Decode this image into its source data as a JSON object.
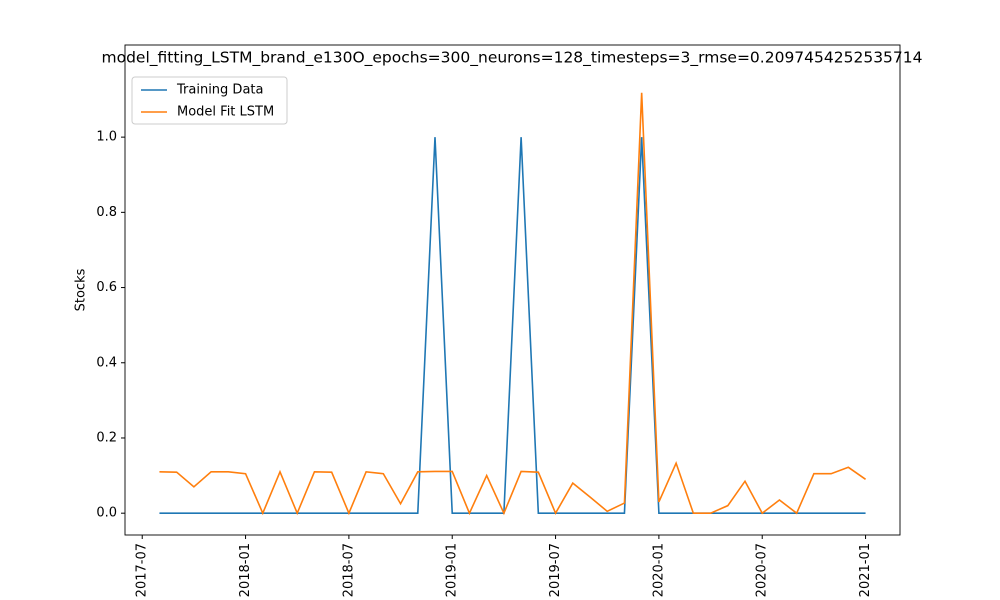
{
  "chart_data": {
    "type": "line",
    "title": "model_fitting_LSTM_brand_e130O_epochs=300_neurons=128_timesteps=3_rmse=0.2097454252535714",
    "y_label": "Stocks",
    "x": [
      "2017-08",
      "2017-09",
      "2017-10",
      "2017-11",
      "2017-12",
      "2018-01",
      "2018-02",
      "2018-03",
      "2018-04",
      "2018-05",
      "2018-06",
      "2018-07",
      "2018-08",
      "2018-09",
      "2018-10",
      "2018-11",
      "2018-12",
      "2019-01",
      "2019-02",
      "2019-03",
      "2019-04",
      "2019-05",
      "2019-06",
      "2019-07",
      "2019-08",
      "2019-09",
      "2019-10",
      "2019-11",
      "2019-12",
      "2020-01",
      "2020-02",
      "2020-03",
      "2020-04",
      "2020-05",
      "2020-06",
      "2020-07",
      "2020-08",
      "2020-09",
      "2020-10",
      "2020-11",
      "2020-12",
      "2021-01"
    ],
    "series": [
      {
        "name": "Training Data",
        "color": "#1f77b4",
        "values": [
          0,
          0,
          0,
          0,
          0,
          0,
          0,
          0,
          0,
          0,
          0,
          0,
          0,
          0,
          0,
          0,
          1,
          0,
          0,
          0,
          0,
          1,
          0,
          0,
          0,
          0,
          0,
          0,
          1,
          0,
          0,
          0,
          0,
          0,
          0,
          0,
          0,
          0,
          0,
          0,
          0,
          0
        ]
      },
      {
        "name": "Model Fit LSTM",
        "color": "#ff7f0e",
        "values": [
          0.11,
          0.109,
          0.07,
          0.11,
          0.11,
          0.105,
          0.0,
          0.11,
          0.0,
          0.11,
          0.109,
          0.0,
          0.11,
          0.105,
          0.025,
          0.11,
          0.111,
          0.111,
          0.0,
          0.1,
          0.0,
          0.111,
          0.109,
          0.0,
          0.08,
          0.043,
          0.005,
          0.027,
          1.118,
          0.03,
          0.133,
          0.0,
          0.0,
          0.02,
          0.085,
          0.0,
          0.035,
          0.0,
          0.105,
          0.105,
          0.122,
          0.09
        ]
      }
    ],
    "xlim": [
      "2017-06",
      "2021-03"
    ],
    "xticks": [
      "2017-07",
      "2018-01",
      "2018-07",
      "2019-01",
      "2019-07",
      "2020-01",
      "2020-07",
      "2021-01"
    ],
    "ylim": [
      -0.058,
      1.245
    ],
    "yticks": [
      {
        "value": 0,
        "label": "0.0"
      },
      {
        "value": 0.2,
        "label": "0.2"
      },
      {
        "value": 0.4,
        "label": "0.4"
      },
      {
        "value": 0.6,
        "label": "0.6"
      },
      {
        "value": 0.8,
        "label": "0.8"
      },
      {
        "value": 1,
        "label": "1.0"
      }
    ],
    "legend": "upper left",
    "grid": false
  }
}
